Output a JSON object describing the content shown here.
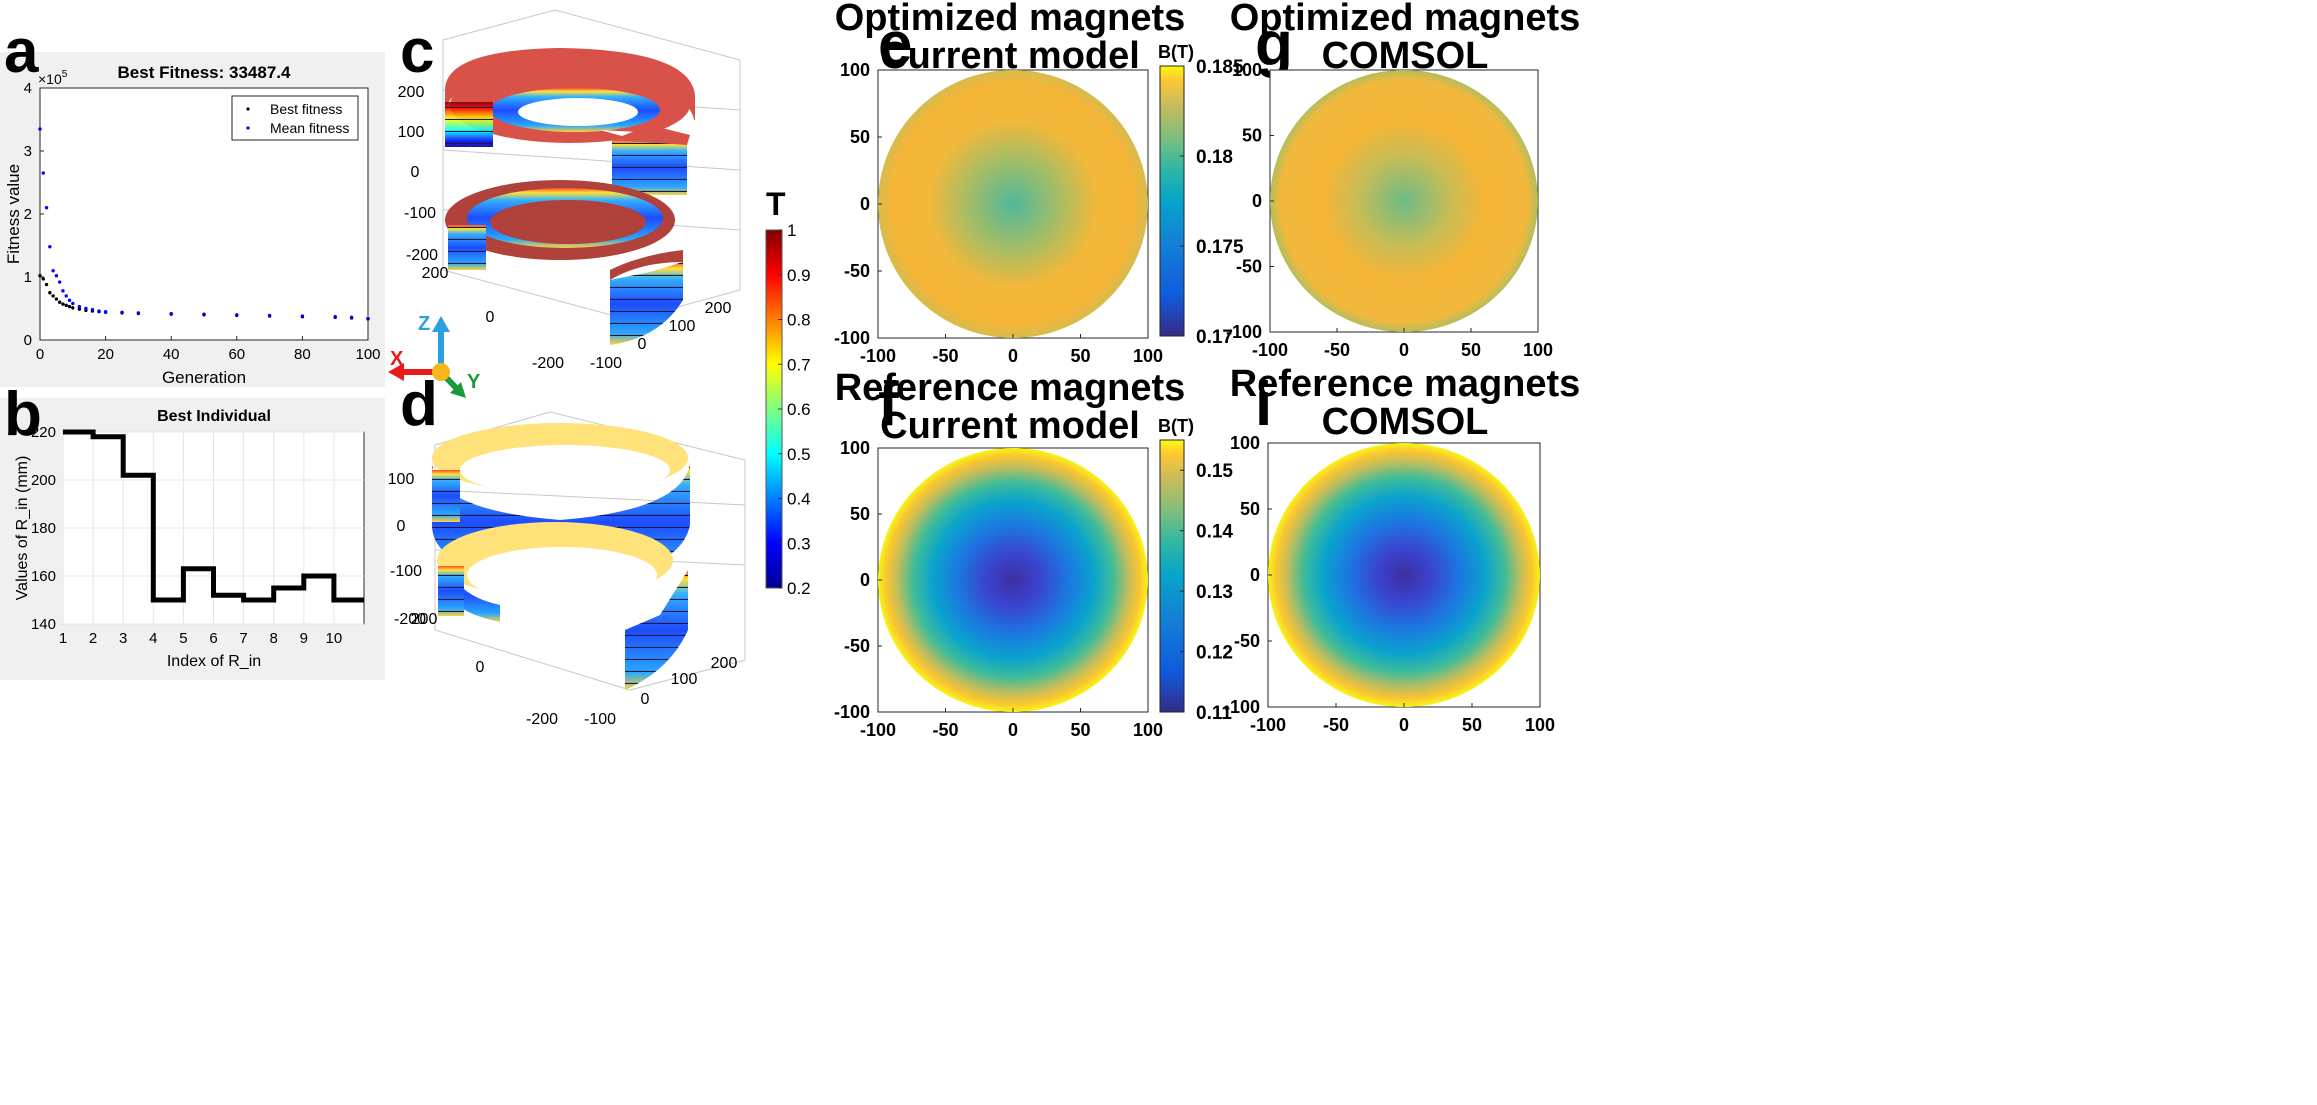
{
  "panel_labels": {
    "a": "a",
    "b": "b",
    "c": "c",
    "d": "d",
    "e": "e",
    "f": "f",
    "g": "g",
    "i": "i"
  },
  "colors": {
    "best_fitness": "#000000",
    "mean_fitness": "#0000ff",
    "step_line": "#000000"
  },
  "chart_data": [
    {
      "id": "a",
      "type": "scatter",
      "title": "Best Fitness: 33487.4",
      "xlabel": "Generation",
      "ylabel": "Fitness value",
      "y_exponent": "×10",
      "y_exponent_power": "5",
      "xlim": [
        0,
        100
      ],
      "ylim": [
        0,
        4
      ],
      "xticks": [
        "0",
        "20",
        "40",
        "60",
        "80",
        "100"
      ],
      "yticks": [
        "0",
        "1",
        "2",
        "3",
        "4"
      ],
      "legend": {
        "position": "top-right",
        "entries": [
          "Best fitness",
          "Mean fitness"
        ]
      },
      "series": [
        {
          "name": "Best fitness",
          "x": [
            0,
            1,
            2,
            3,
            4,
            5,
            6,
            7,
            8,
            9,
            10,
            12,
            14,
            16,
            18,
            20,
            25,
            30,
            40,
            50,
            60,
            70,
            80,
            90,
            95,
            100
          ],
          "y": [
            1.02,
            0.97,
            0.88,
            0.75,
            0.7,
            0.65,
            0.6,
            0.57,
            0.55,
            0.53,
            0.51,
            0.49,
            0.47,
            0.46,
            0.45,
            0.44,
            0.43,
            0.42,
            0.41,
            0.4,
            0.39,
            0.38,
            0.37,
            0.36,
            0.35,
            0.335
          ]
        },
        {
          "name": "Mean fitness",
          "x": [
            0,
            1,
            2,
            3,
            4,
            5,
            6,
            7,
            8,
            9,
            10,
            12,
            14,
            16,
            18,
            20,
            25,
            30,
            40,
            50,
            60,
            70,
            80,
            90,
            95,
            100
          ],
          "y": [
            3.35,
            2.65,
            2.1,
            1.48,
            1.1,
            1.02,
            0.92,
            0.78,
            0.7,
            0.63,
            0.58,
            0.53,
            0.5,
            0.48,
            0.46,
            0.45,
            0.44,
            0.43,
            0.42,
            0.41,
            0.4,
            0.39,
            0.38,
            0.37,
            0.36,
            0.34
          ]
        }
      ]
    },
    {
      "id": "b",
      "type": "line",
      "title": "Best Individual",
      "xlabel": "Index of R_in",
      "ylabel": "Values of R_in (mm)",
      "xlim": [
        1,
        11
      ],
      "ylim": [
        140,
        220
      ],
      "xticks": [
        "1",
        "2",
        "3",
        "4",
        "5",
        "6",
        "7",
        "8",
        "9",
        "10"
      ],
      "yticks": [
        "140",
        "160",
        "180",
        "200",
        "220"
      ],
      "series": [
        {
          "name": "R_in",
          "index": [
            1,
            2,
            3,
            4,
            5,
            6,
            7,
            8,
            9,
            10
          ],
          "values": [
            220,
            218,
            202,
            150,
            163,
            152,
            150,
            155,
            160,
            150
          ]
        }
      ]
    },
    {
      "id": "e",
      "type": "heatmap",
      "title_lines": [
        "Optimized magnets",
        "Current model"
      ],
      "xlim": [
        -100,
        100
      ],
      "ylim": [
        -100,
        100
      ],
      "xticks": [
        "-100",
        "-50",
        "0",
        "50",
        "100"
      ],
      "yticks": [
        "100",
        "50",
        "0",
        "-50",
        "-100"
      ],
      "colorbar": {
        "label": "B(T)",
        "min": 0.17,
        "max": 0.185,
        "ticks": [
          "0.185",
          "0.18",
          "0.175",
          "0.17"
        ]
      },
      "field": {
        "center_value": 0.178,
        "mid_value": 0.1835,
        "edge_value": 0.1815
      }
    },
    {
      "id": "g",
      "type": "heatmap",
      "title_lines": [
        "Optimized magnets",
        "COMSOL"
      ],
      "xlim": [
        -100,
        100
      ],
      "ylim": [
        -100,
        100
      ],
      "xticks": [
        "-100",
        "-50",
        "0",
        "50",
        "100"
      ],
      "yticks": [
        "100",
        "50",
        "0",
        "-50",
        "-100"
      ],
      "field": {
        "center_value": 0.179,
        "mid_value": 0.1835,
        "edge_value": 0.182
      }
    },
    {
      "id": "f",
      "type": "heatmap",
      "title_lines": [
        "Reference magnets",
        "Current model"
      ],
      "xlim": [
        -100,
        100
      ],
      "ylim": [
        -100,
        100
      ],
      "xticks": [
        "-100",
        "-50",
        "0",
        "50",
        "100"
      ],
      "yticks": [
        "100",
        "50",
        "0",
        "-50",
        "-100"
      ],
      "colorbar": {
        "label": "B(T)",
        "min": 0.11,
        "max": 0.155,
        "ticks": [
          "0.15",
          "0.14",
          "0.13",
          "0.12",
          "0.11"
        ]
      },
      "field": {
        "center_value": 0.112,
        "mid_value": 0.13,
        "edge_value": 0.155
      }
    },
    {
      "id": "i",
      "type": "heatmap",
      "title_lines": [
        "Reference magnets",
        "COMSOL"
      ],
      "xlim": [
        -100,
        100
      ],
      "ylim": [
        -100,
        100
      ],
      "xticks": [
        "-100",
        "-50",
        "0",
        "50",
        "100"
      ],
      "yticks": [
        "100",
        "50",
        "0",
        "-50",
        "-100"
      ],
      "field": {
        "center_value": 0.112,
        "mid_value": 0.13,
        "edge_value": 0.155
      }
    }
  ],
  "geometry3d": {
    "c": {
      "z_ticks": [
        "200",
        "100",
        "0",
        "-100",
        "-200"
      ],
      "x_ticks": [
        "200",
        "0",
        "-200"
      ],
      "y_ticks": [
        "-100",
        "0",
        "100",
        "200"
      ]
    },
    "d": {
      "z_ticks": [
        "100",
        "0",
        "-100",
        "-200"
      ],
      "x_ticks": [
        "200",
        "0",
        "-200"
      ],
      "y_ticks": [
        "-100",
        "0",
        "100",
        "200"
      ]
    },
    "shared_colorbar": {
      "label": "T",
      "min": 0.2,
      "max": 1,
      "ticks": [
        "1",
        "0.9",
        "0.8",
        "0.7",
        "0.6",
        "0.5",
        "0.4",
        "0.3",
        "0.2"
      ]
    },
    "axes_triad": {
      "x": "X",
      "y": "Y",
      "z": "Z"
    }
  }
}
